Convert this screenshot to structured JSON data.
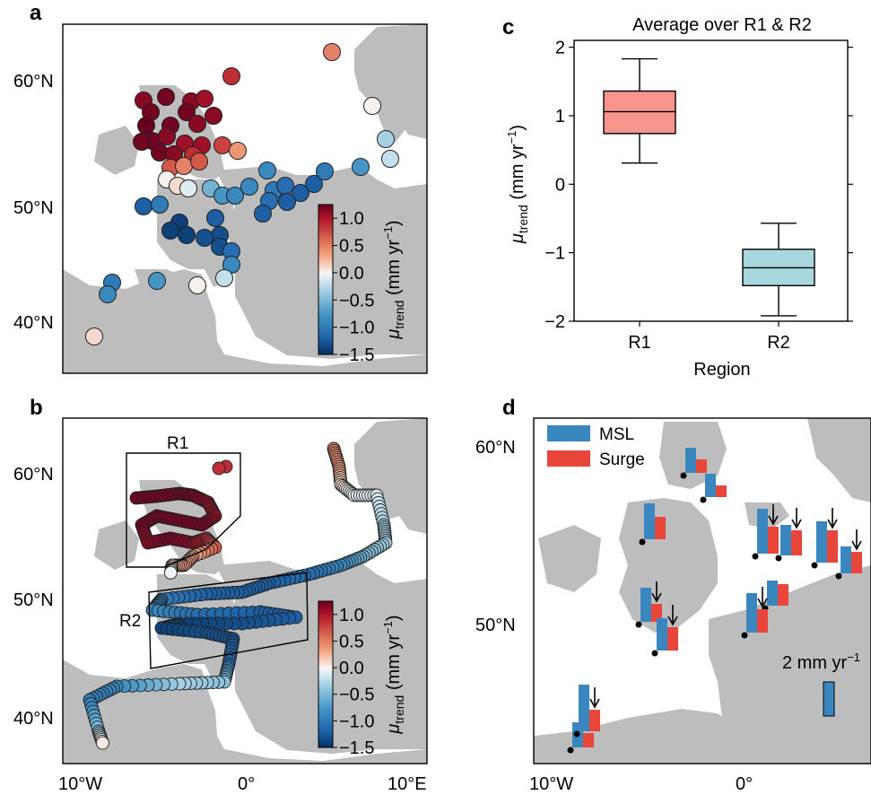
{
  "panels": {
    "a": "a",
    "b": "b",
    "c": "c",
    "d": "d"
  },
  "maps": {
    "lat_labels": [
      "60°N",
      "50°N",
      "40°N"
    ],
    "lon_labels": [
      "10°W",
      "0°",
      "10°E"
    ],
    "land_color": "#bdbdbd",
    "ocean_color": "#ffffff",
    "region_boxes": [
      "R1",
      "R2"
    ]
  },
  "colorbar": {
    "ticks": [
      "1.0",
      "0.5",
      "0.0",
      "−0.5",
      "−1.0",
      "−1.5"
    ],
    "label_symbol": "μ",
    "label_sub": "trend",
    "label_unit": "(mm yr",
    "label_unit_exp": "−1",
    "label_unit_close": ")",
    "range": [
      -1.5,
      1.25
    ],
    "colors": [
      "#053061",
      "#2166ac",
      "#4393c3",
      "#92c5de",
      "#f7f7f7",
      "#f4a582",
      "#d6604d",
      "#b2182b",
      "#67001f"
    ]
  },
  "legend_d": {
    "msl": "MSL",
    "surge": "Surge",
    "msl_color": "#3a87c0",
    "surge_color": "#e8463a",
    "scale_label": "2 mm yr",
    "scale_exp": "−1"
  },
  "map_d": {
    "lat_labels": [
      "60°N",
      "50°N"
    ],
    "lon_labels": [
      "10°W",
      "0°"
    ]
  },
  "chart_data": [
    {
      "type": "boxplot",
      "title": "Average over R1 & R2",
      "xlabel": "Region",
      "ylabel_symbol": "μ",
      "ylabel_sub": "trend",
      "ylabel_unit": "(mm yr",
      "ylabel_exp": "−1",
      "ylabel_close": ")",
      "categories": [
        "R1",
        "R2"
      ],
      "ylim": [
        -2,
        2.1
      ],
      "yticks": [
        2,
        1,
        0,
        -1,
        -2
      ],
      "ytick_labels": [
        "2",
        "1",
        "0",
        "−1",
        "−2"
      ],
      "colors": [
        "#f7948e",
        "#a8d8dd"
      ],
      "boxes": [
        {
          "name": "R1",
          "whisker_low": 0.31,
          "q1": 0.74,
          "median": 1.06,
          "q3": 1.36,
          "whisker_high": 1.83
        },
        {
          "name": "R2",
          "whisker_low": -1.92,
          "q1": -1.48,
          "median": -1.22,
          "q3": -0.95,
          "whisker_high": -0.57
        }
      ]
    }
  ]
}
